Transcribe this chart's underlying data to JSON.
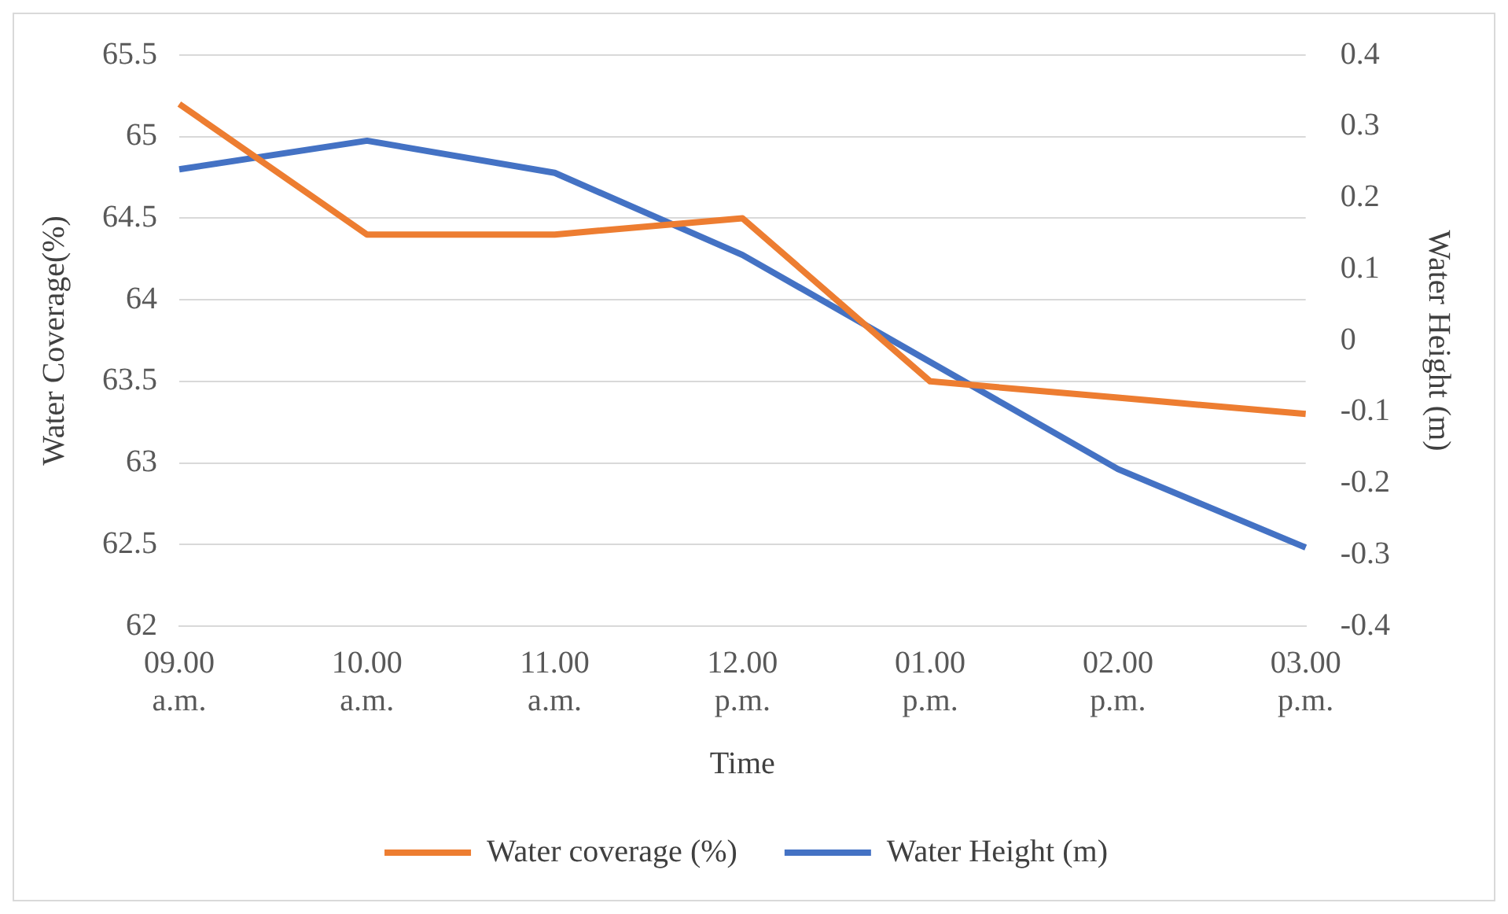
{
  "chart_data": {
    "type": "line",
    "xlabel": "Time",
    "ylabel": "Water Coverage(%)",
    "y2label": "Water Height (m)",
    "categories": [
      "09.00 a.m.",
      "10.00 a.m.",
      "11.00 a.m.",
      "12.00 p.m.",
      "01.00 p.m.",
      "02.00 p.m.",
      "03.00 p.m."
    ],
    "series": [
      {
        "name": "Water coverage (%)",
        "color": "#ed7d31",
        "values": [
          65.2,
          64.4,
          64.4,
          64.5,
          63.5,
          63.4,
          63.3
        ]
      },
      {
        "name": "Water Height (m)",
        "color": "#4472c4",
        "axis": "y2",
        "values": [
          0.24,
          0.28,
          0.235,
          0.12,
          -0.03,
          -0.18,
          -0.29
        ]
      }
    ],
    "ylim": [
      62,
      65.5
    ],
    "yticks": [
      62,
      62.5,
      63,
      63.5,
      64,
      64.5,
      65,
      65.5
    ],
    "y2lim": [
      -0.4,
      0.4
    ],
    "y2ticks": [
      -0.4,
      -0.3,
      -0.2,
      -0.1,
      0,
      0.1,
      0.2,
      0.3,
      0.4
    ],
    "grid": "y",
    "legend": "bottom",
    "marker": "none",
    "line_style": "solid"
  }
}
